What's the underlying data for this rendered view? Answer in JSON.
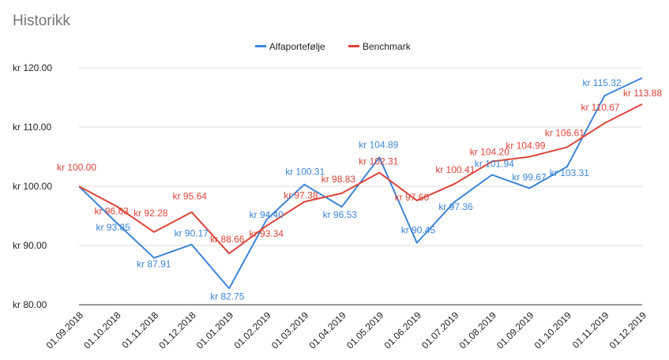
{
  "chart_data": {
    "type": "line",
    "title": "Historikk",
    "xlabel": "",
    "ylabel": "",
    "currency_prefix": "kr",
    "ylim": [
      80,
      120
    ],
    "yticks": [
      "kr  80.00",
      "kr  90.00",
      "kr  100.00",
      "kr  110.00",
      "kr  120.00"
    ],
    "ytick_values": [
      80,
      90,
      100,
      110,
      120
    ],
    "grid": true,
    "legend_position": "top",
    "categories": [
      "01.09.2018",
      "01.10.2018",
      "01.11.2018",
      "01.12.2018",
      "01.01.2019",
      "01.02.2019",
      "01.03.2019",
      "01.04.2019",
      "01.05.2019",
      "01.06.2019",
      "01.07.2019",
      "01.08.2019",
      "01.09.2019",
      "01.10.2019",
      "01.11.2019",
      "01.12.2019"
    ],
    "series": [
      {
        "name": "Alfaportefølje",
        "color": "#3d85d8",
        "values": [
          100.0,
          93.85,
          87.91,
          90.17,
          82.75,
          94.4,
          100.31,
          96.53,
          104.89,
          90.45,
          97.36,
          101.94,
          99.67,
          103.31,
          115.32,
          118.3
        ],
        "labels": [
          "",
          "kr  93.85",
          "kr  87.91",
          "kr  90.17",
          "kr  82.75",
          "kr  94.40",
          "kr  100.31",
          "kr  96.53",
          "kr  104.89",
          "kr  90.45",
          "kr  97.36",
          "kr  101.94",
          "kr  99.67",
          "kr  103.31",
          "kr  115.32",
          ""
        ]
      },
      {
        "name": "Benchmark",
        "color": "#db4437",
        "values": [
          100.0,
          96.63,
          92.28,
          95.64,
          88.66,
          93.34,
          97.38,
          98.83,
          102.31,
          97.6,
          100.41,
          104.2,
          104.99,
          106.61,
          110.67,
          113.88
        ],
        "labels": [
          "kr  100.00",
          "kr  96.63",
          "kr  92.28",
          "kr  95.64",
          "kr  88.66",
          "kr  93.34",
          "kr  97.38",
          "kr  98.83",
          "kr  102.31",
          "kr  97.60",
          "kr  100.41",
          "kr  104.20",
          "kr  104.99",
          "kr  106.61",
          "kr  110.67",
          "kr  113.88"
        ]
      }
    ]
  }
}
